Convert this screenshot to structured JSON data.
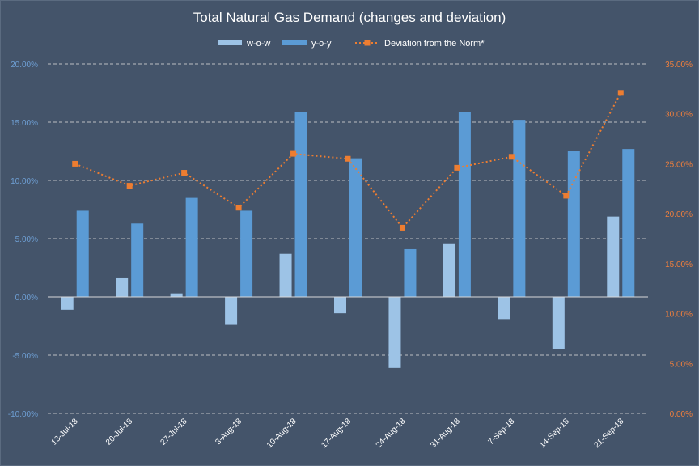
{
  "chart_data": {
    "type": "bar",
    "title": "Total Natural Gas Demand (changes and deviation)",
    "categories": [
      "13-Jul-18",
      "20-Jul-18",
      "27-Jul-18",
      "3-Aug-18",
      "10-Aug-18",
      "17-Aug-18",
      "24-Aug-18",
      "31-Aug-18",
      "7-Sep-18",
      "14-Sep-18",
      "21-Sep-18"
    ],
    "series": [
      {
        "name": "w-o-w",
        "type": "bar",
        "axis": "left",
        "color": "#9dc3e6",
        "values": [
          -1.1,
          1.6,
          0.3,
          -2.4,
          3.7,
          -1.4,
          -6.1,
          4.6,
          -1.9,
          -4.5,
          6.9
        ]
      },
      {
        "name": "y-o-y",
        "type": "bar",
        "axis": "left",
        "color": "#5b9bd5",
        "values": [
          7.4,
          6.3,
          8.5,
          7.4,
          15.9,
          11.9,
          4.1,
          15.9,
          15.2,
          12.5,
          12.7
        ]
      },
      {
        "name": "Deviation from the Norm*",
        "type": "line",
        "axis": "right",
        "color": "#ed7d31",
        "values": [
          25.0,
          22.8,
          24.1,
          20.6,
          26.0,
          25.5,
          18.6,
          24.6,
          25.7,
          21.8,
          32.1
        ]
      }
    ],
    "ylim_left": [
      -10,
      20
    ],
    "yticks_left": [
      "20.00%",
      "15.00%",
      "10.00%",
      "5.00%",
      "0.00%",
      "-5.00%",
      "-10.00%"
    ],
    "ylim_right": [
      0,
      35
    ],
    "yticks_right": [
      "35.00%",
      "30.00%",
      "25.00%",
      "20.00%",
      "15.00%",
      "10.00%",
      "5.00%",
      "0.00%"
    ],
    "grid": true,
    "legend_position": "top-center"
  }
}
